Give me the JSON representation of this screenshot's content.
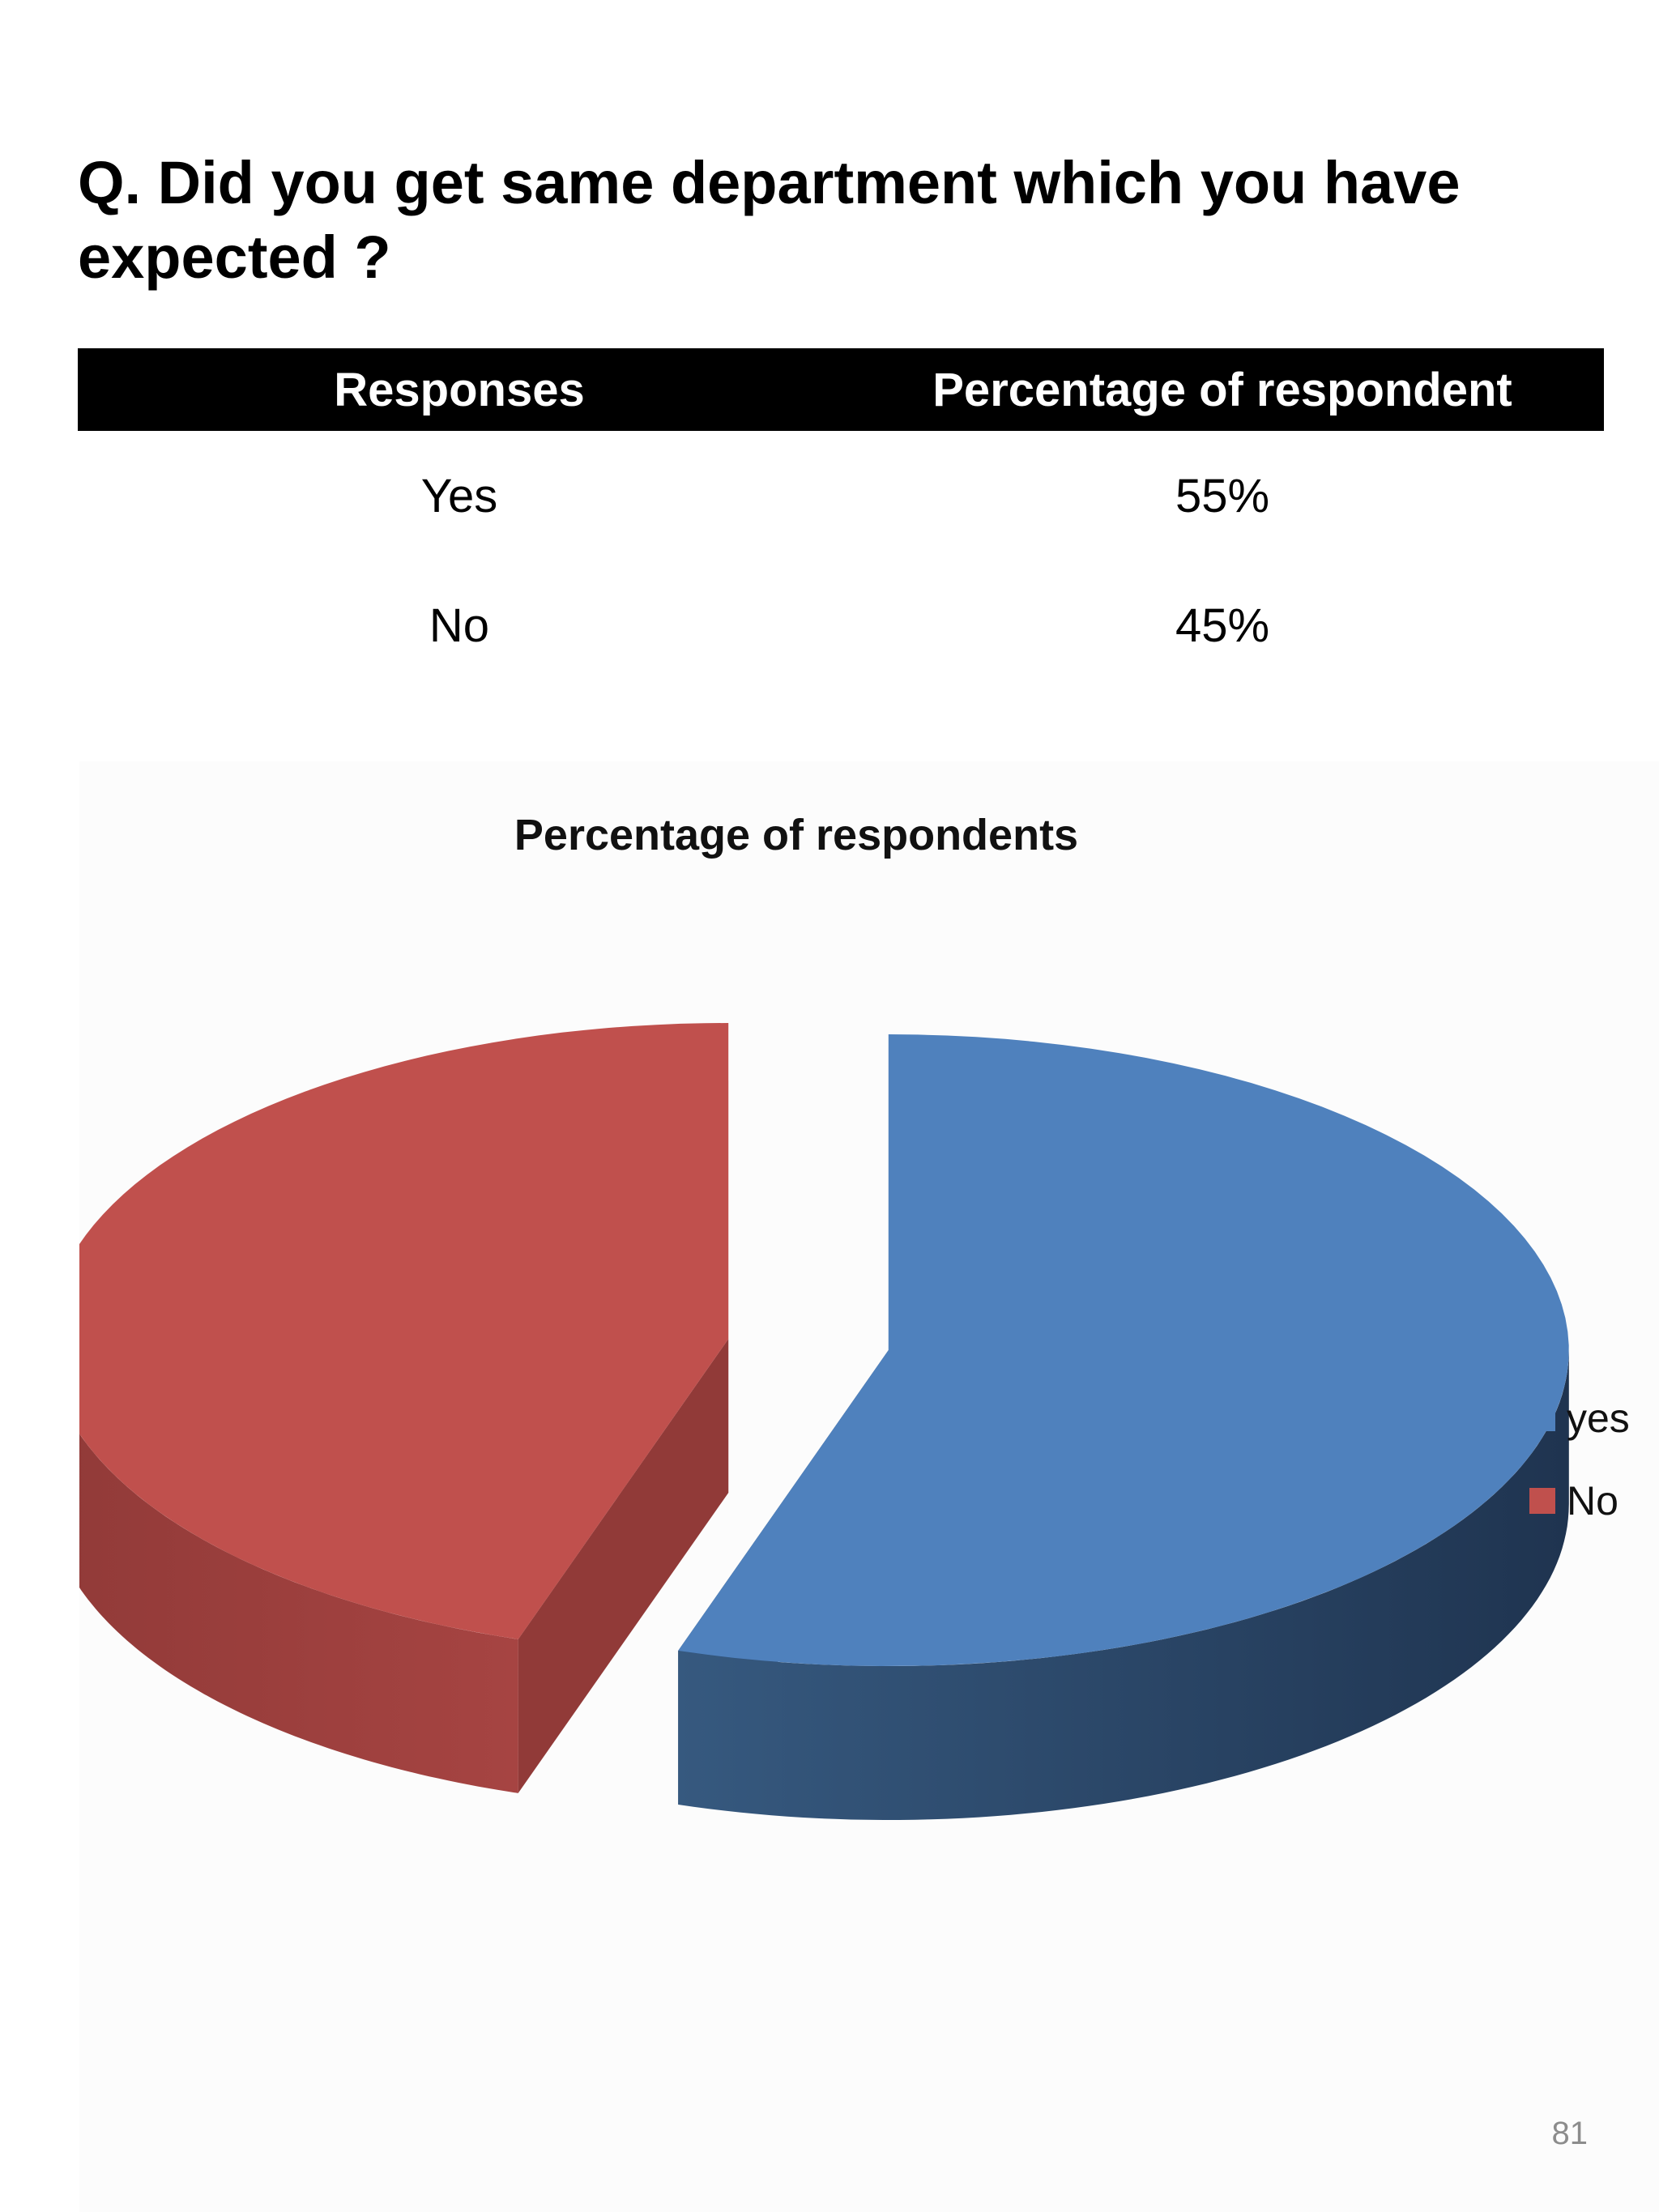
{
  "question": "Q. Did you get same department which you have expected ?",
  "table": {
    "headers": [
      "Responses",
      "Percentage of respondent"
    ],
    "rows": [
      [
        "Yes",
        "55%"
      ],
      [
        "No",
        "45%"
      ]
    ]
  },
  "chart_data": {
    "type": "pie",
    "title": "Percentage of respondents",
    "style": "3d-exploded",
    "legend_position": "right",
    "slices": [
      {
        "label": "yes",
        "value": 55,
        "color": "#4f81bd",
        "side_color": "#2a4a75"
      },
      {
        "label": "No",
        "value": 45,
        "color": "#c0504d",
        "side_color": "#913a38"
      }
    ]
  },
  "page_number": "81"
}
